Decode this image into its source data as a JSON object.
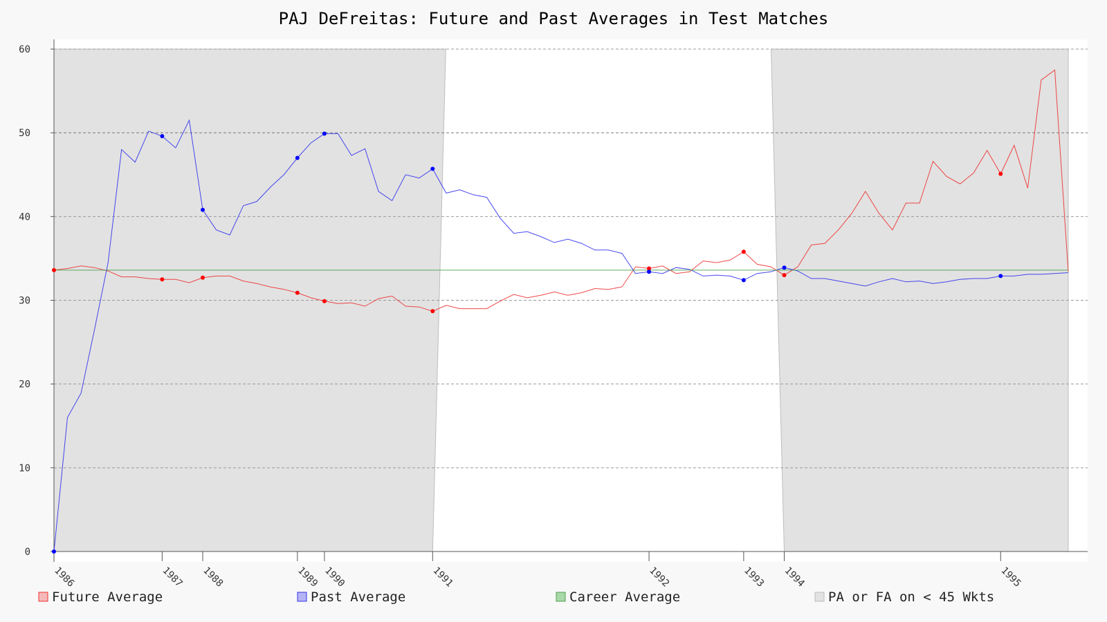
{
  "chart_data": {
    "type": "line",
    "title": "PAJ DeFreitas: Future and Past Averages in Test Matches",
    "xlabel": "",
    "ylabel": "",
    "ylim": [
      0,
      60
    ],
    "yticks": [
      0,
      10,
      20,
      30,
      40,
      50,
      60
    ],
    "grid": true,
    "legend_position": "bottom",
    "match_count": 76,
    "year_ticks": [
      {
        "label": "1986",
        "match": 1
      },
      {
        "label": "1987",
        "match": 9
      },
      {
        "label": "1988",
        "match": 12
      },
      {
        "label": "1989",
        "match": 19
      },
      {
        "label": "1990",
        "match": 21
      },
      {
        "label": "1991",
        "match": 29
      },
      {
        "label": "1992",
        "match": 45
      },
      {
        "label": "1993",
        "match": 52
      },
      {
        "label": "1994",
        "match": 55
      },
      {
        "label": "1995",
        "match": 71
      }
    ],
    "series": [
      {
        "name": "Future Average",
        "color": "#ee3333",
        "values": [
          33.6,
          33.8,
          34.1,
          33.9,
          33.5,
          32.8,
          32.8,
          32.6,
          32.5,
          32.5,
          32.1,
          32.7,
          32.9,
          32.9,
          32.3,
          32.0,
          31.6,
          31.3,
          30.9,
          30.3,
          29.9,
          29.6,
          29.7,
          29.3,
          30.2,
          30.5,
          29.3,
          29.2,
          28.7,
          29.4,
          29.0,
          29.0,
          29.0,
          29.9,
          30.7,
          30.3,
          30.6,
          31.0,
          30.6,
          30.9,
          31.4,
          31.3,
          31.6,
          34.0,
          33.8,
          34.1,
          33.2,
          33.4,
          34.7,
          34.5,
          34.8,
          35.8,
          34.3,
          34.0,
          33.0,
          34.0,
          36.6,
          36.8,
          38.4,
          40.4,
          43.0,
          40.4,
          38.4,
          41.6,
          41.6,
          46.6,
          44.8,
          43.9,
          45.2,
          47.9,
          45.1,
          48.5,
          43.4,
          56.3,
          57.5,
          33.4
        ],
        "markers": [
          1,
          9,
          12,
          19,
          21,
          29,
          45,
          52,
          55,
          71
        ]
      },
      {
        "name": "Past Average",
        "color": "#3333ee",
        "values": [
          0.0,
          16.0,
          18.9,
          26.5,
          34.5,
          48.0,
          46.5,
          50.2,
          49.6,
          48.2,
          51.5,
          40.8,
          38.4,
          37.8,
          41.3,
          41.8,
          43.5,
          45.0,
          47.0,
          48.8,
          49.9,
          49.9,
          47.3,
          48.1,
          43.0,
          41.9,
          45.0,
          44.6,
          45.7,
          42.8,
          43.2,
          42.6,
          42.3,
          39.8,
          38.0,
          38.2,
          37.6,
          36.9,
          37.3,
          36.8,
          36.0,
          36.0,
          35.6,
          33.2,
          33.4,
          33.2,
          33.9,
          33.7,
          32.9,
          33.0,
          32.9,
          32.4,
          33.2,
          33.4,
          33.9,
          33.5,
          32.6,
          32.6,
          32.3,
          32.0,
          31.7,
          32.2,
          32.6,
          32.2,
          32.3,
          32.0,
          32.2,
          32.5,
          32.6,
          32.6,
          32.9,
          32.9,
          33.1,
          33.1,
          33.2,
          33.3
        ],
        "markers": [
          1,
          9,
          12,
          19,
          21,
          29,
          45,
          52,
          55,
          71
        ]
      },
      {
        "name": "Career Average",
        "color": "#4ea04e",
        "values": [
          33.6,
          33.6
        ]
      }
    ],
    "shaded_regions": [
      {
        "name": "PA or FA on < 45 Wkts",
        "from_match": 1,
        "to_match": 29
      },
      {
        "name": "PA or FA on < 45 Wkts",
        "from_match": 55,
        "to_match": 76
      }
    ],
    "legend": [
      {
        "label": "Future Average",
        "fill": "#f6b8b8",
        "stroke": "#ee3333"
      },
      {
        "label": "Past Average",
        "fill": "#b4b4f4",
        "stroke": "#3333ee"
      },
      {
        "label": "Career Average",
        "fill": "#a9d8a9",
        "stroke": "#4ea04e"
      },
      {
        "label": "PA or FA on < 45 Wkts",
        "fill": "#e2e2e2",
        "stroke": "#bbbbbb"
      }
    ]
  }
}
